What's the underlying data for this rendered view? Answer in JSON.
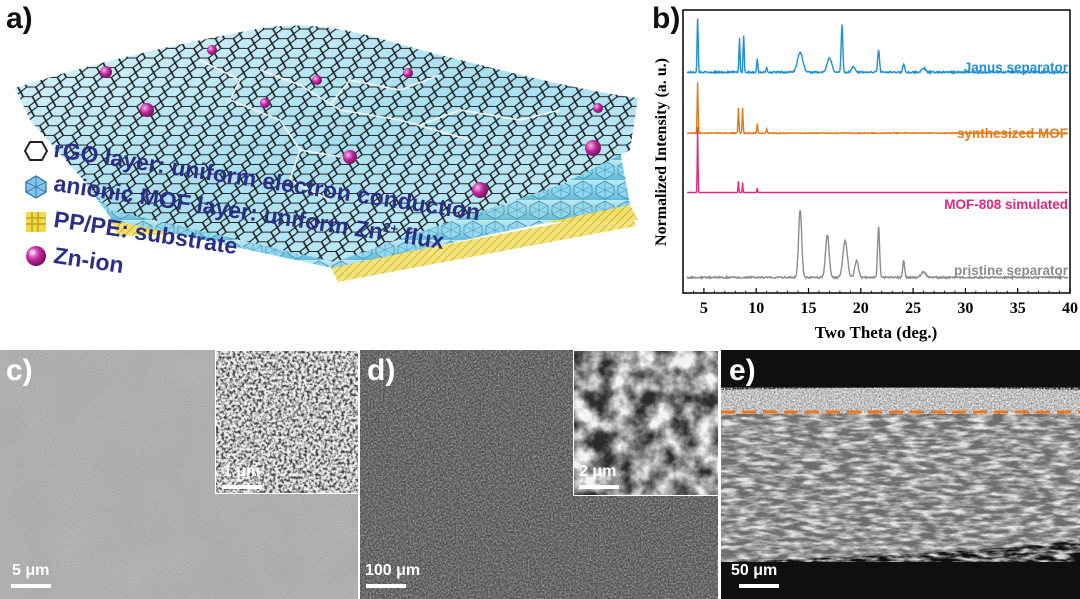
{
  "panel_labels": {
    "a": "a)",
    "b": "b)",
    "c": "c)",
    "d": "d)",
    "e": "e)"
  },
  "legend": [
    {
      "icon": "hexagon-icon",
      "text": "rGO layer: uniform electron conduction"
    },
    {
      "icon": "polyhedron-icon",
      "text": "anionic MOF layer: uniform Zn",
      "sup": "2+",
      "suffix": " flux"
    },
    {
      "icon": "fiber-mesh-icon",
      "text": "PP/PE: substrate"
    },
    {
      "icon": "sphere-icon",
      "text": "Zn-ion"
    }
  ],
  "colors": {
    "janus": "#1e8fd6",
    "mof": "#e07b1c",
    "simulated": "#e0267d",
    "pristine": "#8c8c8c",
    "legend_text": "#2b2e86",
    "scheme_mof": "#7fd3ee",
    "scheme_substrate": "#f3e06a",
    "zn_ion": "#c0269e",
    "dashed_line": "#e87722"
  },
  "chart_data": {
    "type": "line",
    "title": "",
    "xlabel": "Two Theta (deg.)",
    "ylabel": "Normalized Intensity (a. u.)",
    "xlim": [
      3,
      40
    ],
    "xticks": [
      5,
      10,
      15,
      20,
      25,
      30,
      35,
      40
    ],
    "y_ticks_shown": false,
    "grid": false,
    "series": [
      {
        "name": "Janus separator",
        "color": "#1e8fd6",
        "baseline": 0.78,
        "noise": 0.003,
        "peaks": [
          [
            4.4,
            0.19,
            0.12
          ],
          [
            8.4,
            0.12,
            0.12
          ],
          [
            8.8,
            0.13,
            0.12
          ],
          [
            10.1,
            0.05,
            0.12
          ],
          [
            11.0,
            0.02,
            0.12
          ],
          [
            14.2,
            0.07,
            0.6
          ],
          [
            17.0,
            0.05,
            0.5
          ],
          [
            18.2,
            0.17,
            0.18
          ],
          [
            19.3,
            0.02,
            0.4
          ],
          [
            21.7,
            0.08,
            0.2
          ],
          [
            24.1,
            0.03,
            0.2
          ],
          [
            26.0,
            0.015,
            0.4
          ]
        ]
      },
      {
        "name": "synthesized MOF",
        "color": "#e07b1c",
        "baseline": 0.565,
        "noise": 0.0015,
        "peaks": [
          [
            4.4,
            0.18,
            0.1
          ],
          [
            8.3,
            0.09,
            0.1
          ],
          [
            8.7,
            0.09,
            0.1
          ],
          [
            10.1,
            0.035,
            0.1
          ],
          [
            11.0,
            0.015,
            0.12
          ]
        ]
      },
      {
        "name": "MOF-808 simulated",
        "color": "#e0267d",
        "baseline": 0.355,
        "noise": 0.0,
        "peaks": [
          [
            4.4,
            0.23,
            0.08
          ],
          [
            8.3,
            0.04,
            0.08
          ],
          [
            8.7,
            0.035,
            0.08
          ],
          [
            10.1,
            0.015,
            0.08
          ]
        ]
      },
      {
        "name": "pristine separator",
        "color": "#8c8c8c",
        "baseline": 0.055,
        "noise": 0.003,
        "peaks": [
          [
            14.2,
            0.24,
            0.35
          ],
          [
            16.8,
            0.15,
            0.4
          ],
          [
            18.5,
            0.13,
            0.5
          ],
          [
            19.6,
            0.06,
            0.4
          ],
          [
            21.7,
            0.18,
            0.22
          ],
          [
            24.1,
            0.06,
            0.22
          ],
          [
            26.0,
            0.02,
            0.5
          ]
        ]
      }
    ]
  },
  "sem": {
    "c": {
      "scale_main": "5 μm",
      "scale_inset": "1 μm"
    },
    "d": {
      "scale_main": "100 μm",
      "scale_inset": "2 μm"
    },
    "e": {
      "scale_main": "50 μm"
    }
  }
}
